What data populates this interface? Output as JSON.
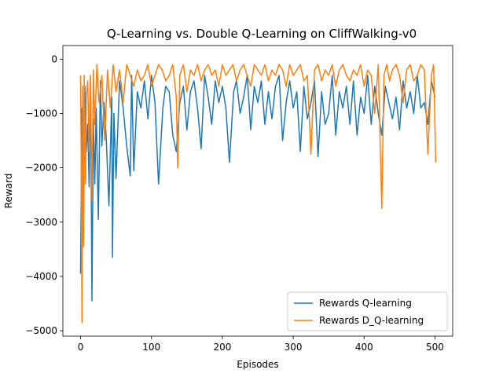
{
  "chart_data": {
    "type": "line",
    "title": "Q-Learning vs. Double Q-Learning on CliffWalking-v0",
    "xlabel": "Episodes",
    "ylabel": "Reward",
    "xlim": [
      -25,
      525
    ],
    "ylim": [
      -5100,
      250
    ],
    "xticks": [
      0,
      100,
      200,
      300,
      400,
      500
    ],
    "yticks": [
      -5000,
      -4000,
      -3000,
      -2000,
      -1000,
      0
    ],
    "ytick_labels": [
      "−5000",
      "−4000",
      "−3000",
      "−2000",
      "−1000",
      "0"
    ],
    "grid": false,
    "legend_position": "lower right",
    "series": [
      {
        "name": "Rewards Q-learning",
        "color": "#1f77b4",
        "x": [
          0,
          2,
          4,
          6,
          8,
          10,
          12,
          14,
          16,
          18,
          20,
          22,
          25,
          28,
          30,
          33,
          36,
          40,
          44,
          45,
          47,
          50,
          55,
          60,
          65,
          70,
          72,
          75,
          80,
          85,
          90,
          95,
          100,
          105,
          110,
          116,
          120,
          125,
          130,
          135,
          140,
          145,
          150,
          155,
          160,
          165,
          170,
          175,
          180,
          185,
          190,
          195,
          200,
          205,
          210,
          216,
          220,
          225,
          230,
          235,
          240,
          245,
          250,
          255,
          260,
          265,
          270,
          275,
          280,
          285,
          290,
          295,
          300,
          305,
          310,
          315,
          320,
          325,
          330,
          335,
          340,
          345,
          350,
          355,
          360,
          365,
          370,
          375,
          380,
          385,
          390,
          395,
          400,
          405,
          410,
          415,
          420,
          425,
          430,
          435,
          440,
          445,
          450,
          455,
          460,
          465,
          470,
          475,
          480,
          485,
          490,
          495,
          500
        ],
        "values": [
          -3950,
          -900,
          -3100,
          -500,
          -1700,
          -1200,
          -2350,
          -300,
          -4450,
          -1100,
          -2300,
          -900,
          -2950,
          -400,
          -1600,
          -800,
          -1400,
          -2700,
          -700,
          -3650,
          -1000,
          -2200,
          -400,
          -900,
          -1600,
          -2150,
          -300,
          -2050,
          -600,
          -900,
          -400,
          -1100,
          -300,
          -800,
          -2300,
          -900,
          -500,
          -600,
          -1400,
          -1700,
          -800,
          -500,
          -1300,
          -600,
          -400,
          -900,
          -1650,
          -300,
          -700,
          -1200,
          -400,
          -800,
          -500,
          -900,
          -1900,
          -600,
          -400,
          -1000,
          -700,
          -300,
          -1300,
          -500,
          -800,
          -400,
          -1200,
          -600,
          -1100,
          -500,
          -300,
          -1500,
          -800,
          -400,
          -900,
          -600,
          -1700,
          -500,
          -1100,
          -800,
          -400,
          -1800,
          -600,
          -1200,
          -1000,
          -300,
          -1400,
          -600,
          -900,
          -500,
          -1200,
          -400,
          -1400,
          -700,
          -1000,
          -300,
          -1200,
          -500,
          -1000,
          -1400,
          -500,
          -800,
          -1100,
          -700,
          -1300,
          -400,
          -900,
          -600,
          -1000,
          -300,
          -900,
          -800,
          -1200,
          -400,
          -700
        ]
      },
      {
        "name": "Rewards D_Q-learning",
        "color": "#ff7f0e",
        "x": [
          0,
          1,
          2,
          3,
          4,
          5,
          6,
          7,
          8,
          10,
          12,
          14,
          16,
          18,
          20,
          23,
          26,
          30,
          34,
          38,
          42,
          46,
          50,
          55,
          60,
          65,
          70,
          75,
          80,
          85,
          90,
          95,
          100,
          105,
          110,
          115,
          120,
          125,
          130,
          135,
          137,
          140,
          145,
          150,
          155,
          160,
          165,
          170,
          175,
          180,
          185,
          190,
          195,
          200,
          205,
          210,
          215,
          220,
          225,
          230,
          235,
          240,
          245,
          250,
          255,
          260,
          265,
          270,
          275,
          280,
          285,
          290,
          295,
          300,
          305,
          310,
          315,
          320,
          325,
          330,
          335,
          340,
          345,
          350,
          355,
          360,
          365,
          370,
          375,
          380,
          385,
          390,
          395,
          400,
          405,
          410,
          415,
          420,
          425,
          428,
          432,
          436,
          440,
          445,
          450,
          455,
          460,
          465,
          470,
          475,
          480,
          485,
          490,
          495,
          498,
          501
        ],
        "values": [
          -300,
          -2000,
          -4850,
          -500,
          -3450,
          -300,
          -1600,
          -2300,
          -700,
          -400,
          -1700,
          -300,
          -2600,
          -200,
          -1200,
          -100,
          -800,
          -300,
          -1500,
          -200,
          -900,
          -100,
          -600,
          -200,
          -800,
          -100,
          -300,
          -500,
          -200,
          -400,
          -300,
          -100,
          -500,
          -300,
          -100,
          -200,
          -400,
          -300,
          -100,
          -700,
          -2000,
          -300,
          -100,
          -600,
          -200,
          -300,
          -100,
          -400,
          -200,
          -100,
          -300,
          -200,
          -500,
          -100,
          -300,
          -200,
          -100,
          -400,
          -200,
          -100,
          -300,
          -500,
          -100,
          -200,
          -300,
          -100,
          -400,
          -200,
          -300,
          -100,
          -200,
          -500,
          -100,
          -300,
          -200,
          -100,
          -400,
          -300,
          -1750,
          -200,
          -100,
          -400,
          -200,
          -300,
          -100,
          -500,
          -200,
          -100,
          -300,
          -400,
          -200,
          -300,
          -100,
          -500,
          -200,
          -300,
          -1000,
          -100,
          -2750,
          -300,
          -100,
          -400,
          -200,
          -100,
          -300,
          -800,
          -200,
          -100,
          -400,
          -300,
          -100,
          -200,
          -1750,
          -300,
          -100,
          -1900
        ]
      }
    ]
  }
}
